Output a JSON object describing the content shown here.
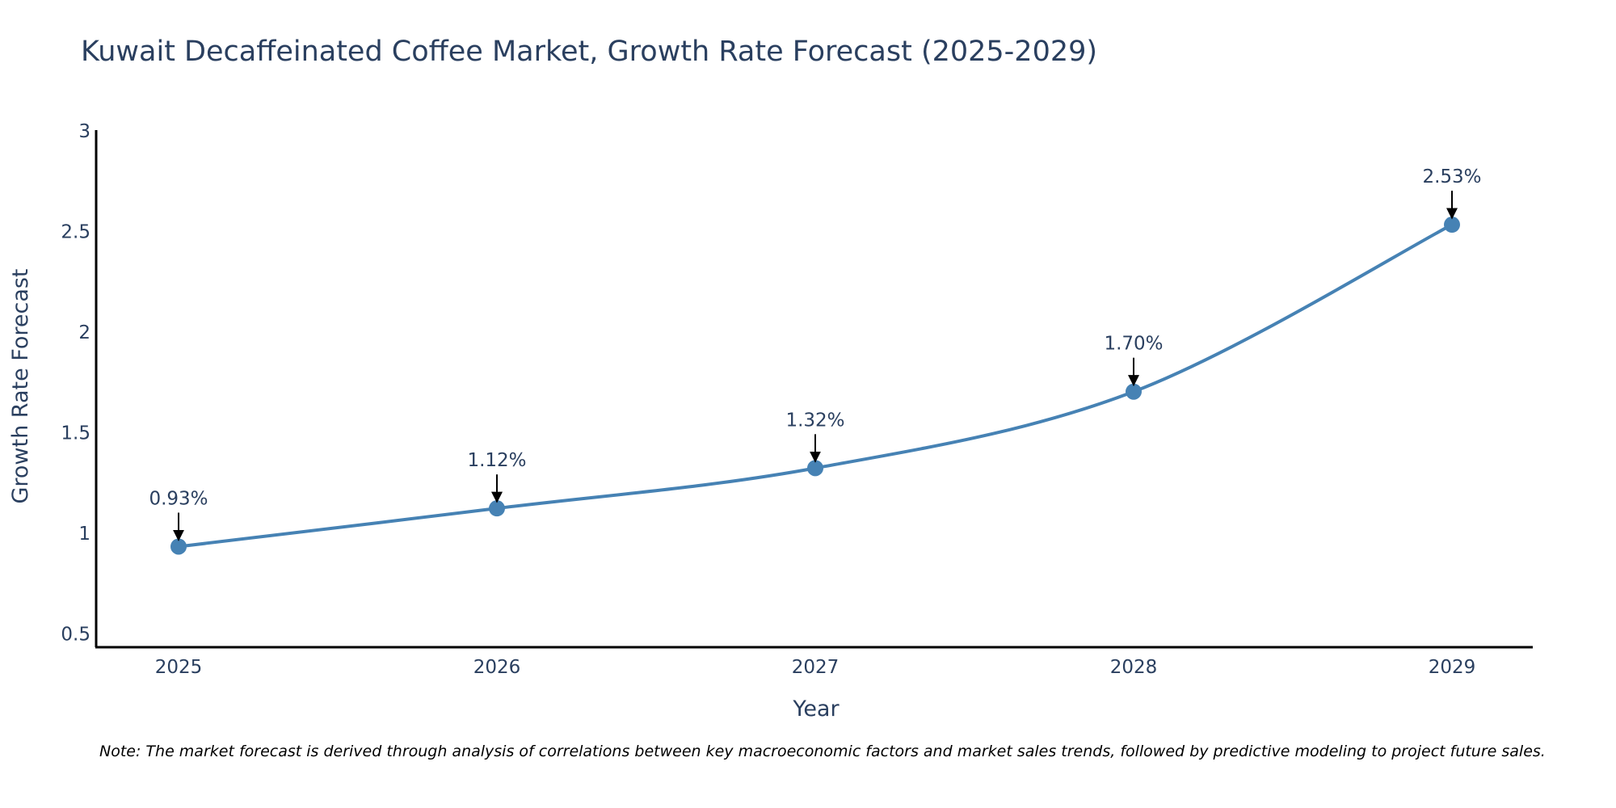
{
  "chart_data": {
    "type": "line",
    "title": "Kuwait Decaffeinated Coffee Market, Growth Rate Forecast (2025-2029)",
    "xlabel": "Year",
    "ylabel": "Growth Rate Forecast",
    "categories": [
      "2025",
      "2026",
      "2027",
      "2028",
      "2029"
    ],
    "values": [
      0.93,
      1.12,
      1.32,
      1.7,
      2.53
    ],
    "data_labels": [
      "0.93%",
      "1.12%",
      "1.32%",
      "1.70%",
      "2.53%"
    ],
    "ylim": [
      0.43,
      3.0
    ],
    "yticks": [
      0.5,
      1,
      1.5,
      2,
      2.5,
      3
    ],
    "ytick_labels": [
      "0.5",
      "1",
      "1.5",
      "2",
      "2.5",
      "3"
    ],
    "grid": false,
    "line_color": "#4682b4",
    "marker_color": "#4682b4",
    "note": "Note: The market forecast is derived through analysis of correlations between key macroeconomic factors and market sales trends, followed by predictive modeling to project future sales."
  }
}
